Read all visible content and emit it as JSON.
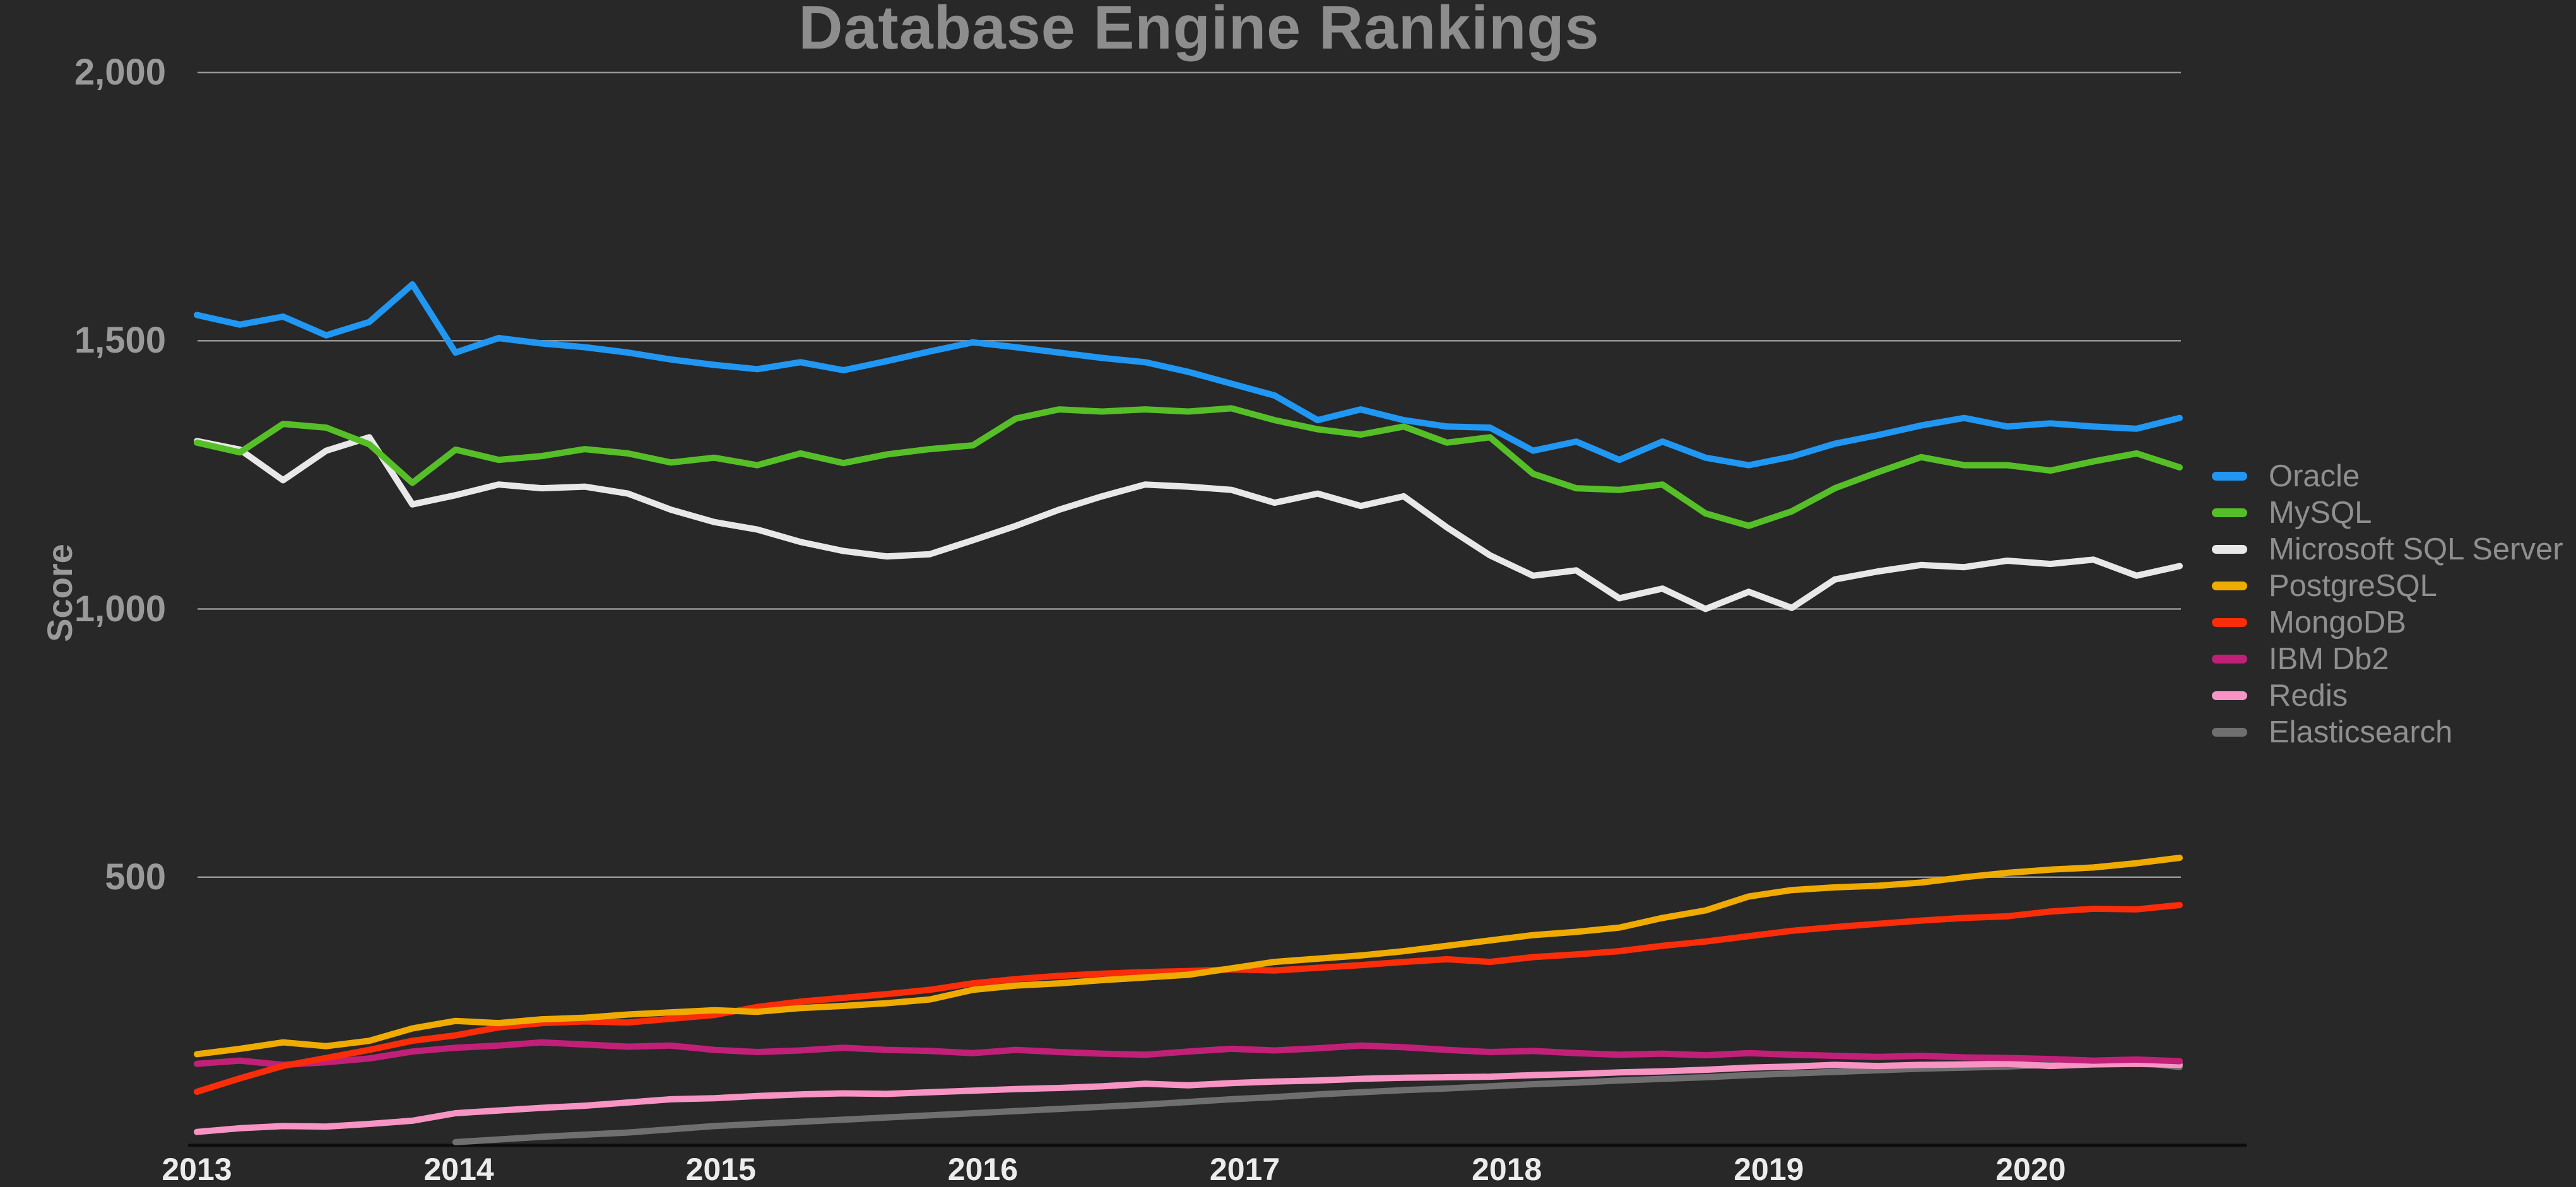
{
  "title": "Database Engine Rankings",
  "y_axis": {
    "label": "Score",
    "ticks": [
      {
        "label": "2,000",
        "value": 2000
      },
      {
        "label": "1,500",
        "value": 1500
      },
      {
        "label": "1,000",
        "value": 1000
      },
      {
        "label": "500",
        "value": 500
      }
    ]
  },
  "x_axis": {
    "ticks": [
      "2013",
      "2014",
      "2015",
      "2016",
      "2017",
      "2018",
      "2019",
      "2020"
    ]
  },
  "legend": [
    {
      "label": "Oracle",
      "color": "#2097f3"
    },
    {
      "label": "MySQL",
      "color": "#56bf27"
    },
    {
      "label": "Microsoft SQL Server",
      "color": "#e8e8e8"
    },
    {
      "label": "PostgreSQL",
      "color": "#f0ab00"
    },
    {
      "label": "MongoDB",
      "color": "#f92d09"
    },
    {
      "label": "IBM Db2",
      "color": "#c12078"
    },
    {
      "label": "Redis",
      "color": "#f794c4"
    },
    {
      "label": "Elasticsearch",
      "color": "#6f6f6f"
    }
  ],
  "chart_data": {
    "type": "line",
    "title": "Database Engine Rankings",
    "xlabel": "",
    "ylabel": "Score",
    "ylim": [
      0,
      2000
    ],
    "grid": "horizontal",
    "legend_position": "right",
    "background": "#282828",
    "x": [
      "2013-01",
      "2013-03",
      "2013-05",
      "2013-07",
      "2013-09",
      "2013-11",
      "2014-01",
      "2014-03",
      "2014-05",
      "2014-07",
      "2014-09",
      "2014-11",
      "2015-01",
      "2015-03",
      "2015-05",
      "2015-07",
      "2015-09",
      "2015-11",
      "2016-01",
      "2016-03",
      "2016-05",
      "2016-07",
      "2016-09",
      "2016-11",
      "2017-01",
      "2017-03",
      "2017-05",
      "2017-07",
      "2017-09",
      "2017-11",
      "2018-01",
      "2018-03",
      "2018-05",
      "2018-07",
      "2018-09",
      "2018-11",
      "2019-01",
      "2019-03",
      "2019-05",
      "2019-07",
      "2019-09",
      "2019-11",
      "2020-01",
      "2020-03",
      "2020-05",
      "2020-07",
      "2020-09"
    ],
    "series": [
      {
        "name": "Elasticsearch",
        "color": "#6f6f6f",
        "values": [
          null,
          null,
          null,
          null,
          null,
          null,
          6,
          11,
          16,
          20,
          24,
          30,
          36,
          40,
          44,
          48,
          52,
          56,
          60,
          64,
          68,
          72,
          76,
          81,
          86,
          90,
          95,
          99,
          103,
          106,
          110,
          114,
          117,
          121,
          124,
          127,
          131,
          134,
          137,
          140,
          143,
          145,
          147,
          150,
          153,
          155,
          146
        ]
      },
      {
        "name": "Redis",
        "color": "#f794c4",
        "values": [
          25,
          32,
          36,
          35,
          40,
          46,
          60,
          65,
          70,
          74,
          80,
          86,
          88,
          92,
          95,
          97,
          96,
          99,
          102,
          105,
          107,
          110,
          115,
          112,
          116,
          119,
          121,
          124,
          126,
          127,
          128,
          131,
          133,
          136,
          138,
          141,
          145,
          147,
          150,
          148,
          150,
          151,
          152,
          148,
          151,
          152,
          150
        ]
      },
      {
        "name": "IBM Db2",
        "color": "#c12078",
        "values": [
          152,
          158,
          150,
          155,
          162,
          175,
          182,
          186,
          192,
          188,
          184,
          186,
          178,
          174,
          177,
          182,
          178,
          176,
          172,
          178,
          174,
          171,
          169,
          175,
          180,
          177,
          181,
          186,
          183,
          178,
          174,
          176,
          172,
          169,
          171,
          168,
          172,
          169,
          167,
          165,
          167,
          164,
          163,
          161,
          158,
          160,
          157
        ]
      },
      {
        "name": "MongoDB",
        "color": "#f92d09",
        "values": [
          100,
          125,
          148,
          163,
          178,
          195,
          205,
          220,
          228,
          231,
          229,
          236,
          243,
          258,
          268,
          275,
          282,
          290,
          302,
          310,
          316,
          320,
          323,
          325,
          328,
          326,
          331,
          336,
          342,
          347,
          342,
          351,
          356,
          362,
          372,
          380,
          390,
          400,
          407,
          413,
          419,
          424,
          427,
          436,
          441,
          440,
          448
        ]
      },
      {
        "name": "PostgreSQL",
        "color": "#f0ab00",
        "values": [
          170,
          180,
          192,
          185,
          195,
          218,
          232,
          228,
          235,
          238,
          244,
          248,
          252,
          249,
          256,
          260,
          265,
          272,
          290,
          298,
          302,
          308,
          313,
          318,
          330,
          342,
          348,
          354,
          362,
          372,
          382,
          392,
          398,
          406,
          424,
          438,
          464,
          476,
          481,
          484,
          490,
          500,
          508,
          514,
          518,
          526,
          536
        ]
      },
      {
        "name": "Microsoft SQL Server",
        "color": "#e8e8e8",
        "values": [
          1313,
          1297,
          1240,
          1295,
          1320,
          1195,
          1212,
          1232,
          1225,
          1228,
          1215,
          1185,
          1162,
          1148,
          1125,
          1108,
          1098,
          1102,
          1128,
          1155,
          1185,
          1210,
          1232,
          1228,
          1222,
          1198,
          1215,
          1192,
          1210,
          1152,
          1100,
          1062,
          1072,
          1020,
          1038,
          1000,
          1032,
          1002,
          1055,
          1070,
          1082,
          1078,
          1090,
          1084,
          1092,
          1062,
          1080
        ]
      },
      {
        "name": "MySQL",
        "color": "#56bf27",
        "values": [
          1310,
          1292,
          1345,
          1338,
          1307,
          1235,
          1297,
          1278,
          1285,
          1298,
          1290,
          1273,
          1282,
          1268,
          1290,
          1272,
          1288,
          1298,
          1305,
          1355,
          1372,
          1368,
          1372,
          1368,
          1374,
          1352,
          1335,
          1325,
          1340,
          1310,
          1320,
          1252,
          1225,
          1222,
          1232,
          1178,
          1155,
          1182,
          1225,
          1255,
          1283,
          1268,
          1268,
          1258,
          1275,
          1290,
          1264
        ]
      },
      {
        "name": "Oracle",
        "color": "#2097f3",
        "values": [
          1548,
          1530,
          1545,
          1510,
          1535,
          1605,
          1478,
          1505,
          1495,
          1488,
          1478,
          1465,
          1455,
          1447,
          1460,
          1445,
          1462,
          1480,
          1497,
          1488,
          1478,
          1468,
          1460,
          1442,
          1420,
          1398,
          1352,
          1372,
          1352,
          1340,
          1338,
          1295,
          1312,
          1278,
          1312,
          1282,
          1268,
          1284,
          1308,
          1324,
          1342,
          1356,
          1340,
          1346,
          1340,
          1336,
          1356
        ]
      }
    ]
  }
}
